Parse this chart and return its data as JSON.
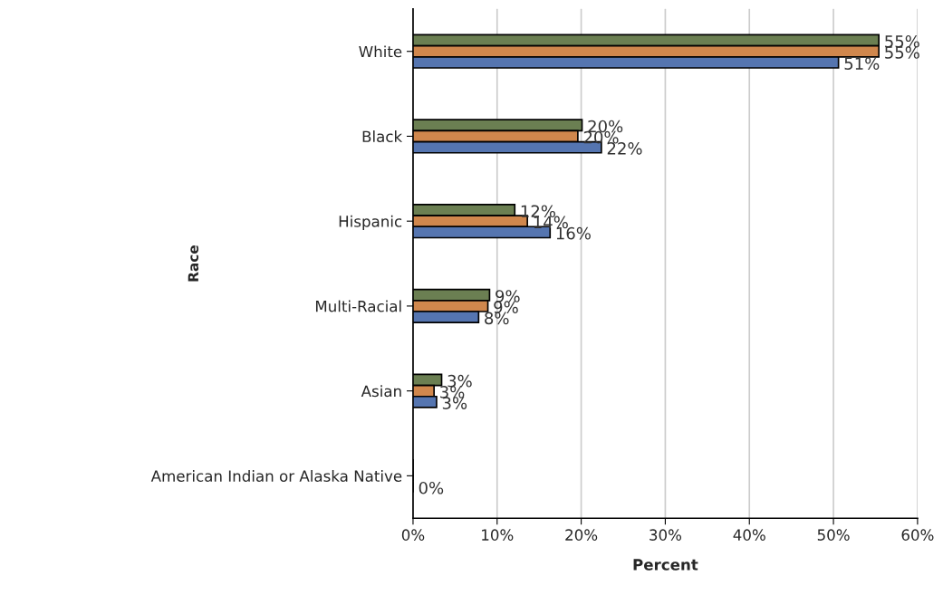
{
  "chart_data": {
    "type": "bar",
    "orientation": "horizontal",
    "xlabel": "Percent",
    "ylabel": "Race",
    "categories": [
      "White",
      "Black",
      "Hispanic",
      "Multi-Racial",
      "Asian",
      "American Indian or Alaska Native"
    ],
    "series": [
      {
        "color": "#6b7f52",
        "values": [
          55.4,
          20.1,
          12.1,
          9.1,
          3.4,
          0
        ],
        "value_labels": [
          "55%",
          "20%",
          "12%",
          "9%",
          "3%",
          null
        ]
      },
      {
        "color": "#d0874d",
        "values": [
          55.4,
          19.6,
          13.6,
          8.9,
          2.5,
          0
        ],
        "value_labels": [
          "55%",
          "20%",
          "14%",
          "9%",
          "3%",
          null
        ]
      },
      {
        "color": "#5575b0",
        "values": [
          50.6,
          22.4,
          16.3,
          7.8,
          2.8,
          0
        ],
        "value_labels": [
          "51%",
          "22%",
          "16%",
          "8%",
          "3%",
          "0%"
        ]
      }
    ],
    "xlim": [
      0,
      60
    ],
    "xticks": [
      {
        "value": 0,
        "label": "0%"
      },
      {
        "value": 10,
        "label": "10%"
      },
      {
        "value": 20,
        "label": "20%"
      },
      {
        "value": 30,
        "label": "30%"
      },
      {
        "value": 40,
        "label": "40%"
      },
      {
        "value": 50,
        "label": "50%"
      },
      {
        "value": 60,
        "label": "60%"
      }
    ],
    "grid": "x",
    "legend": false
  }
}
